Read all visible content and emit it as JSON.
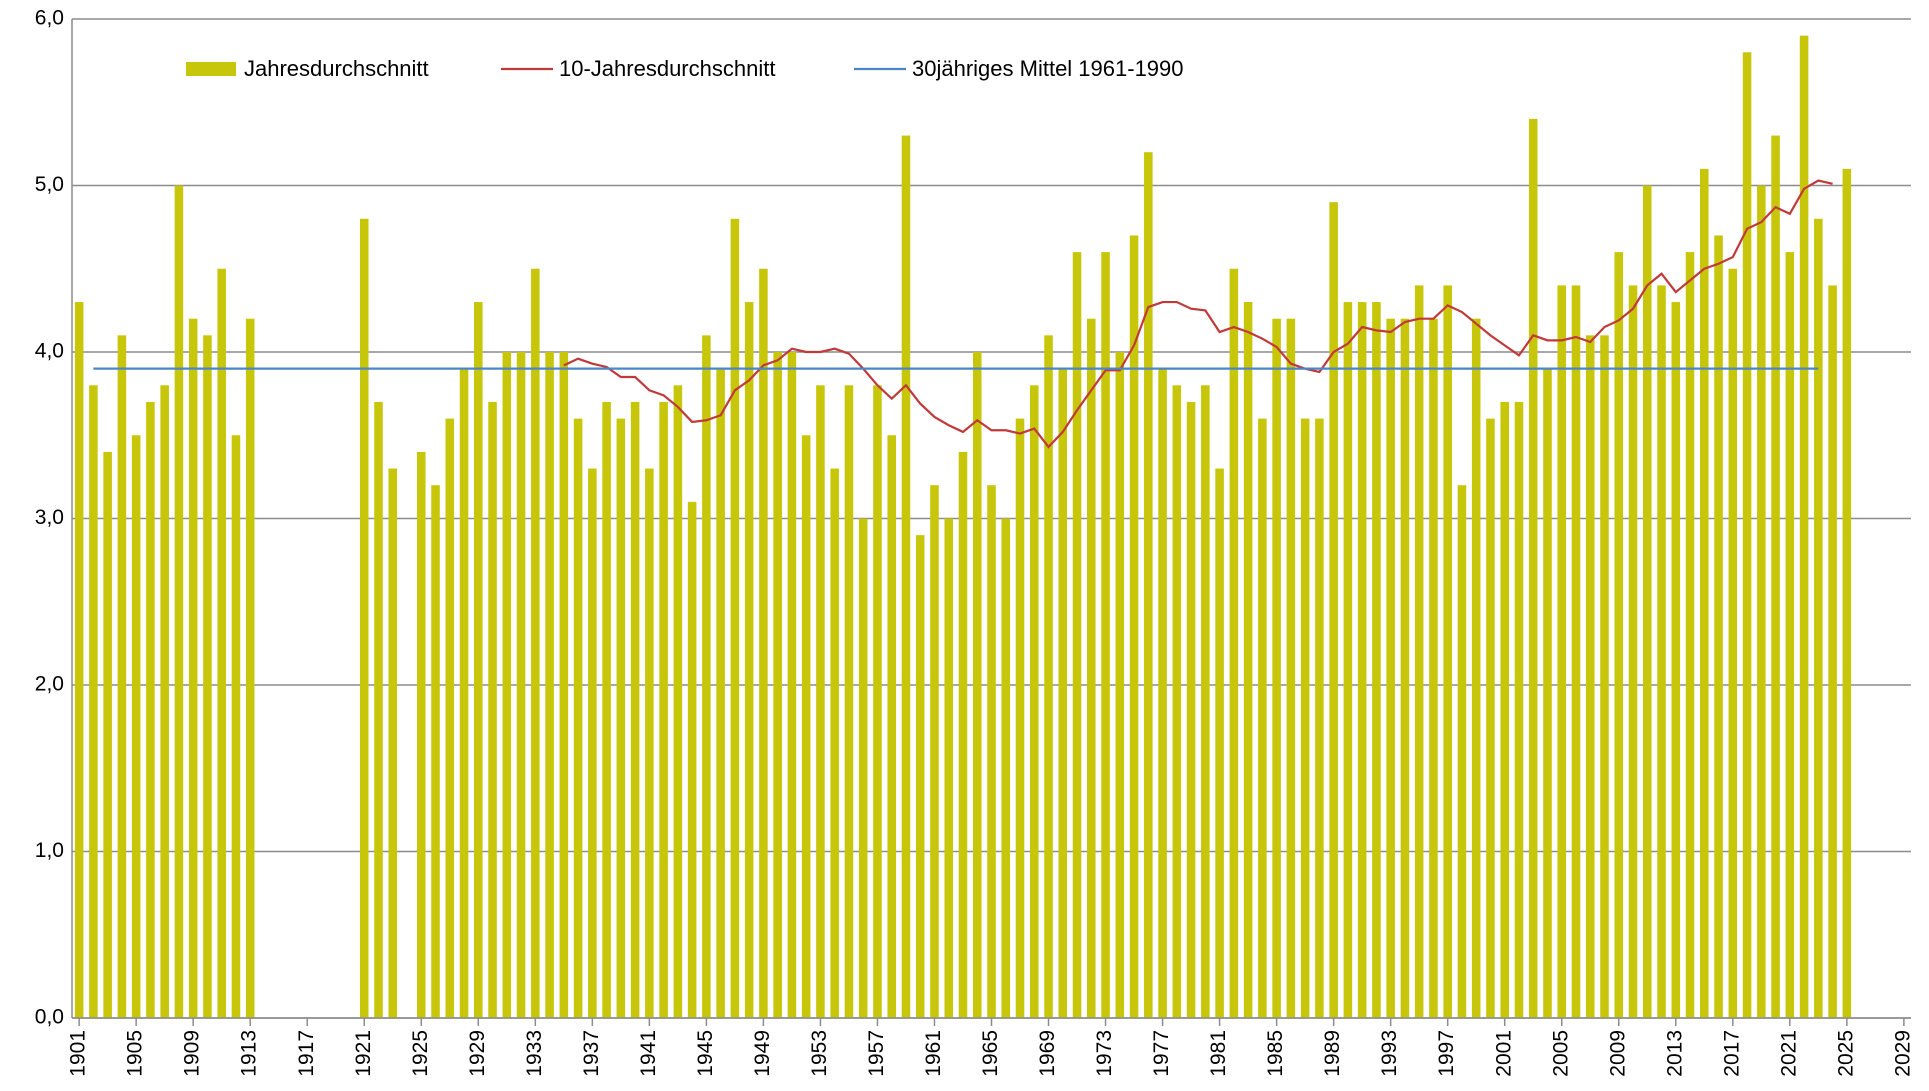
{
  "chart_data": {
    "type": "bar",
    "x": [
      1901,
      1902,
      1903,
      1904,
      1905,
      1906,
      1907,
      1908,
      1909,
      1910,
      1911,
      1912,
      1913,
      1914,
      1915,
      1916,
      1917,
      1918,
      1919,
      1920,
      1921,
      1922,
      1923,
      1924,
      1925,
      1926,
      1927,
      1928,
      1929,
      1930,
      1931,
      1932,
      1933,
      1934,
      1935,
      1936,
      1937,
      1938,
      1939,
      1940,
      1941,
      1942,
      1943,
      1944,
      1945,
      1946,
      1947,
      1948,
      1949,
      1950,
      1951,
      1952,
      1953,
      1954,
      1955,
      1956,
      1957,
      1958,
      1959,
      1960,
      1961,
      1962,
      1963,
      1964,
      1965,
      1966,
      1967,
      1968,
      1969,
      1970,
      1971,
      1972,
      1973,
      1974,
      1975,
      1976,
      1977,
      1978,
      1979,
      1980,
      1981,
      1982,
      1983,
      1984,
      1985,
      1986,
      1987,
      1988,
      1989,
      1990,
      1991,
      1992,
      1993,
      1994,
      1995,
      1996,
      1997,
      1998,
      1999,
      2000,
      2001,
      2002,
      2003,
      2004,
      2005,
      2006,
      2007,
      2008,
      2009,
      2010,
      2011,
      2012,
      2013,
      2014,
      2015,
      2016,
      2017,
      2018,
      2019,
      2020,
      2021,
      2022,
      2023,
      2024,
      2025
    ],
    "series": [
      {
        "name": "Jahresdurchschnitt",
        "type": "bar",
        "color": "#c8c60a",
        "values": [
          4.3,
          3.8,
          3.4,
          4.1,
          3.5,
          3.7,
          3.8,
          5.0,
          4.2,
          4.1,
          4.5,
          3.5,
          4.2,
          null,
          null,
          null,
          null,
          null,
          null,
          null,
          4.8,
          3.7,
          3.3,
          null,
          3.4,
          3.2,
          3.6,
          3.9,
          4.3,
          3.7,
          4.0,
          4.0,
          4.5,
          4.0,
          4.0,
          3.6,
          3.3,
          3.7,
          3.6,
          3.7,
          3.3,
          3.7,
          3.8,
          3.1,
          4.1,
          3.9,
          4.8,
          4.3,
          4.5,
          4.0,
          4.0,
          3.5,
          3.8,
          3.3,
          3.8,
          3.0,
          3.8,
          3.5,
          5.3,
          2.9,
          3.2,
          3.0,
          3.4,
          4.0,
          3.2,
          3.0,
          3.6,
          3.8,
          4.1,
          3.9,
          4.6,
          4.2,
          4.6,
          4.0,
          4.7,
          5.2,
          3.9,
          3.8,
          3.7,
          3.8,
          3.3,
          4.5,
          4.3,
          3.6,
          4.2,
          4.2,
          3.6,
          3.6,
          4.9,
          4.3,
          4.3,
          4.3,
          4.2,
          4.2,
          4.4,
          4.2,
          4.4,
          3.2,
          4.2,
          3.6,
          3.7,
          3.7,
          5.4,
          3.9,
          4.4,
          4.4,
          4.1,
          4.1,
          4.6,
          4.4,
          5.0,
          4.4,
          4.3,
          4.6,
          5.1,
          4.7,
          4.5,
          5.8,
          5.0,
          5.3,
          4.6,
          5.9,
          4.8,
          4.4,
          5.1
        ]
      },
      {
        "name": "10-Jahresdurchschnitt",
        "type": "line",
        "color": "#c03a3a",
        "values": [
          null,
          null,
          null,
          null,
          null,
          null,
          null,
          null,
          null,
          null,
          null,
          null,
          null,
          null,
          null,
          null,
          null,
          null,
          null,
          null,
          null,
          null,
          null,
          null,
          null,
          null,
          null,
          null,
          null,
          null,
          null,
          null,
          null,
          null,
          3.92,
          3.96,
          3.93,
          3.91,
          3.85,
          3.85,
          3.77,
          3.74,
          3.67,
          3.58,
          3.59,
          3.62,
          3.77,
          3.83,
          3.92,
          3.95,
          4.02,
          4.0,
          4.0,
          4.02,
          3.99,
          3.9,
          3.8,
          3.72,
          3.8,
          3.69,
          3.61,
          3.56,
          3.52,
          3.59,
          3.53,
          3.53,
          3.51,
          3.54,
          3.43,
          3.52,
          3.65,
          3.77,
          3.89,
          3.89,
          4.04,
          4.27,
          4.3,
          4.3,
          4.26,
          4.25,
          4.12,
          4.15,
          4.12,
          4.08,
          4.03,
          3.93,
          3.9,
          3.88,
          4.0,
          4.05,
          4.15,
          4.13,
          4.12,
          4.18,
          4.2,
          4.2,
          4.28,
          4.24,
          4.17,
          4.1,
          4.04,
          3.98,
          4.1,
          4.07,
          4.07,
          4.09,
          4.06,
          4.15,
          4.19,
          4.26,
          4.4,
          4.47,
          4.36,
          4.43,
          4.5,
          4.53,
          4.57,
          4.74,
          4.78,
          4.87,
          4.83,
          4.98,
          5.03,
          5.01,
          null
        ]
      }
    ],
    "reference_line": {
      "name": "30jähriges Mittel 1961-1990",
      "color": "#4a86c8",
      "value": 3.9,
      "x_range": [
        1902,
        2023
      ]
    },
    "xlim": [
      1900.5,
      2029.5
    ],
    "xticks": [
      1901,
      1905,
      1909,
      1913,
      1917,
      1921,
      1925,
      1929,
      1933,
      1937,
      1941,
      1945,
      1949,
      1953,
      1957,
      1961,
      1965,
      1969,
      1973,
      1977,
      1981,
      1985,
      1989,
      1993,
      1997,
      2001,
      2005,
      2009,
      2013,
      2017,
      2021,
      2025,
      2029
    ],
    "ylim": [
      0,
      6
    ],
    "yticks": [
      {
        "value": 0,
        "label": "0,0"
      },
      {
        "value": 1,
        "label": "1,0"
      },
      {
        "value": 2,
        "label": "2,0"
      },
      {
        "value": 3,
        "label": "3,0"
      },
      {
        "value": 4,
        "label": "4,0"
      },
      {
        "value": 5,
        "label": "5,0"
      },
      {
        "value": 6,
        "label": "6,0"
      }
    ],
    "grid": true
  }
}
